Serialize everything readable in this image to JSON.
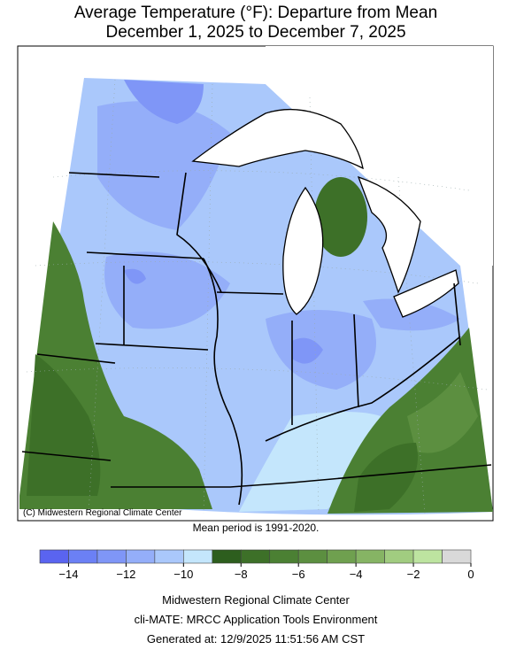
{
  "title": "Average Temperature (°F): Departure from Mean",
  "subtitle": "December 1, 2025 to December 7, 2025",
  "copyright": "(C) Midwestern Regional Climate Center",
  "mean_period": "Mean period is 1991-2020.",
  "legend": {
    "bins": [
      -15,
      -14,
      -13,
      -12,
      -11,
      -10,
      -9,
      -8,
      -7,
      -6,
      -5,
      -4,
      -3,
      -2,
      -1,
      0
    ],
    "colors": [
      "#5a64f0",
      "#6b80f5",
      "#7f96f7",
      "#94aef9",
      "#aac8fb",
      "#c4e6fc",
      "#2d5e1e",
      "#3d7028",
      "#4b8033",
      "#5c8f40",
      "#6fa04f",
      "#86b464",
      "#a1cc80",
      "#bde4a0",
      "#d9d9d9"
    ],
    "ticks": [
      {
        "value": -14,
        "label": "−14"
      },
      {
        "value": -12,
        "label": "−12"
      },
      {
        "value": -10,
        "label": "−10"
      },
      {
        "value": -8,
        "label": "−8"
      },
      {
        "value": -6,
        "label": "−6"
      },
      {
        "value": -4,
        "label": "−4"
      },
      {
        "value": -2,
        "label": "−2"
      },
      0
    ]
  },
  "footer": [
    "Midwestern Regional Climate Center",
    "cli-MATE: MRCC Application Tools Environment",
    "Generated at: 12/9/2025 11:51:56 AM CST"
  ]
}
